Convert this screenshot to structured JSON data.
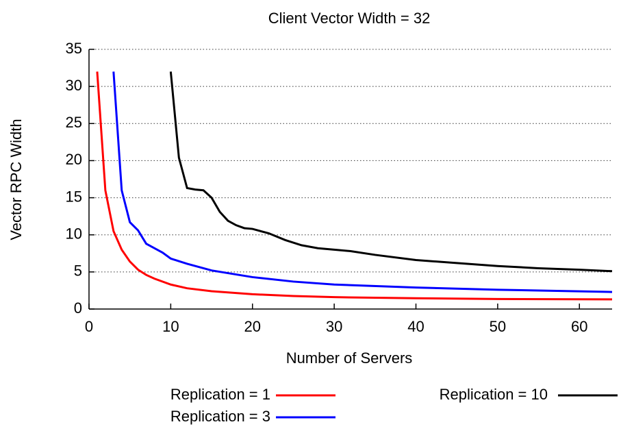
{
  "chart_data": {
    "type": "line",
    "title": "Client Vector Width = 32",
    "x_label": "Number of Servers",
    "y_label": "Vector RPC Width",
    "xlim": [
      0,
      64
    ],
    "ylim": [
      0,
      35
    ],
    "xticks": [
      0,
      10,
      20,
      30,
      40,
      50,
      60
    ],
    "yticks": [
      0,
      5,
      10,
      15,
      20,
      25,
      30,
      35
    ],
    "grid": true,
    "legend": "bottom",
    "series": [
      {
        "name": "Replication = 1",
        "color": "#ff0000",
        "x": [
          1,
          2,
          3,
          4,
          5,
          6,
          7,
          8,
          10,
          12,
          15,
          20,
          25,
          30,
          40,
          50,
          64
        ],
        "values": [
          32,
          16,
          10.5,
          8,
          6.4,
          5.3,
          4.6,
          4.1,
          3.3,
          2.8,
          2.4,
          2.0,
          1.75,
          1.6,
          1.45,
          1.35,
          1.3
        ]
      },
      {
        "name": "Replication = 3",
        "color": "#0000ff",
        "x": [
          3,
          4,
          5,
          6,
          7,
          8,
          9,
          10,
          12,
          15,
          20,
          25,
          30,
          40,
          50,
          64
        ],
        "values": [
          32,
          16,
          11.7,
          10.6,
          8.8,
          8.2,
          7.6,
          6.8,
          6.1,
          5.2,
          4.3,
          3.7,
          3.3,
          2.9,
          2.6,
          2.3
        ]
      },
      {
        "name": "Replication = 10",
        "color": "#000000",
        "x": [
          10,
          11,
          12,
          13,
          14,
          15,
          16,
          17,
          18,
          19,
          20,
          22,
          24,
          26,
          28,
          30,
          32,
          35,
          40,
          45,
          50,
          55,
          60,
          64
        ],
        "values": [
          32,
          20.4,
          16.3,
          16.1,
          16.0,
          15.0,
          13.1,
          11.9,
          11.3,
          10.9,
          10.8,
          10.2,
          9.3,
          8.6,
          8.2,
          8.0,
          7.8,
          7.3,
          6.6,
          6.2,
          5.8,
          5.5,
          5.3,
          5.1
        ]
      }
    ]
  }
}
